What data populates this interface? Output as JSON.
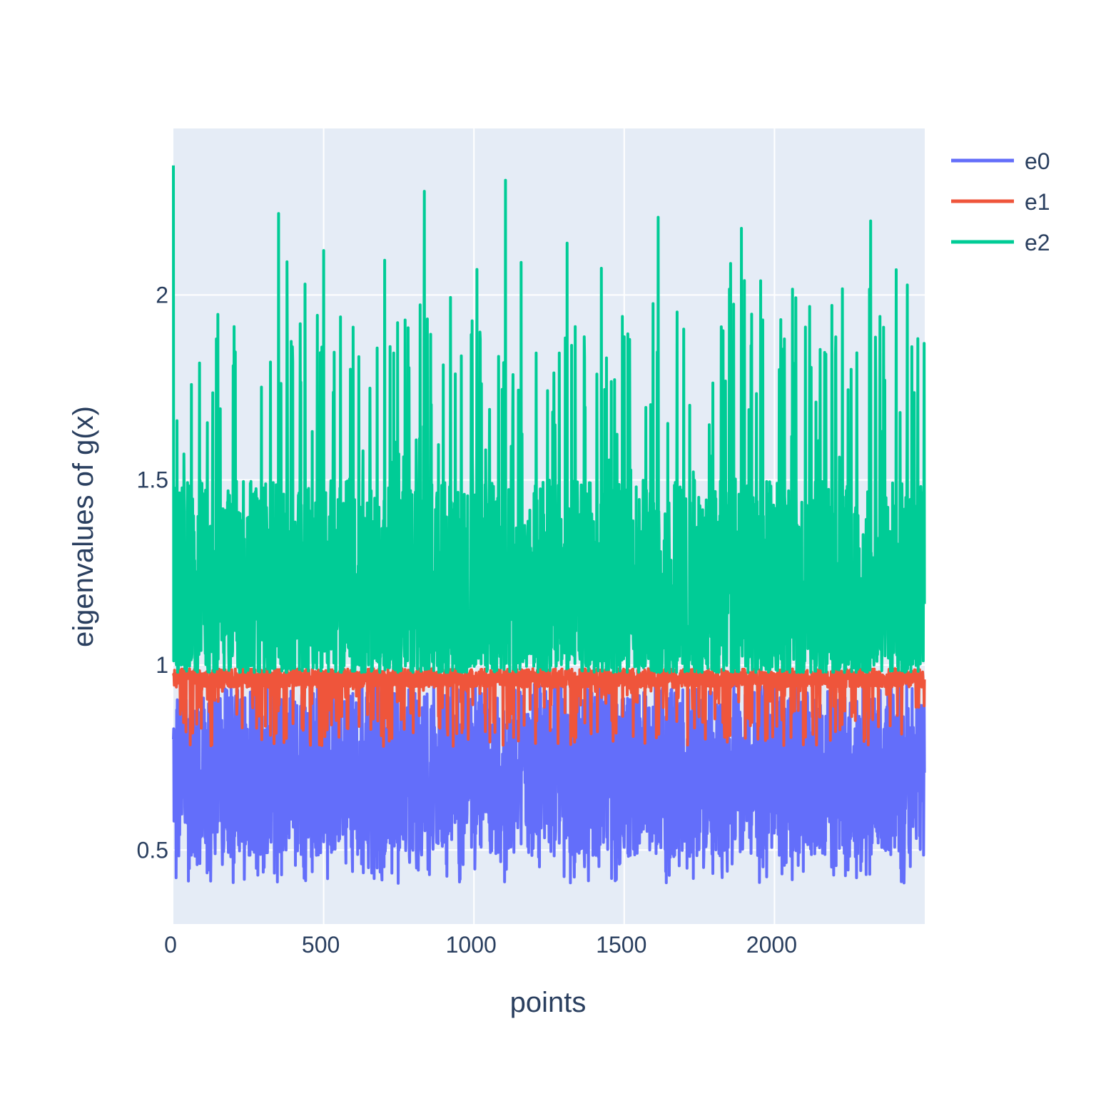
{
  "chart_data": {
    "type": "line",
    "xlabel": "points",
    "ylabel": "eigenvalues of g(x)",
    "xlim": [
      0,
      2500
    ],
    "ylim": [
      0.3,
      2.45
    ],
    "x_ticks": [
      0,
      500,
      1000,
      1500,
      2000
    ],
    "y_ticks": [
      0.5,
      1,
      1.5,
      2
    ],
    "x_tick_labels": [
      "0",
      "500",
      "1000",
      "1500",
      "2000"
    ],
    "y_tick_labels": [
      "0.5",
      "1",
      "1.5",
      "2"
    ],
    "grid": true,
    "legend_position": "top-right",
    "n_points": 2500,
    "series": [
      {
        "name": "e0",
        "color": "#636efa",
        "typical_range": [
          0.48,
          0.95
        ],
        "min": 0.41,
        "max": 0.97
      },
      {
        "name": "e1",
        "color": "#EF553B",
        "typical_range": [
          0.9,
          0.99
        ],
        "min": 0.76,
        "max": 1.02
      },
      {
        "name": "e2",
        "color": "#00cc96",
        "typical_range": [
          0.98,
          1.5
        ],
        "min": 0.95,
        "max": 2.35,
        "peaks": [
          [
            0,
            2.35
          ],
          [
            350,
            2.22
          ],
          [
            500,
            2.12
          ],
          [
            835,
            2.28
          ],
          [
            1105,
            2.31
          ],
          [
            1310,
            2.14
          ],
          [
            1613,
            2.21
          ],
          [
            1890,
            2.18
          ],
          [
            2320,
            2.2
          ]
        ]
      }
    ]
  }
}
